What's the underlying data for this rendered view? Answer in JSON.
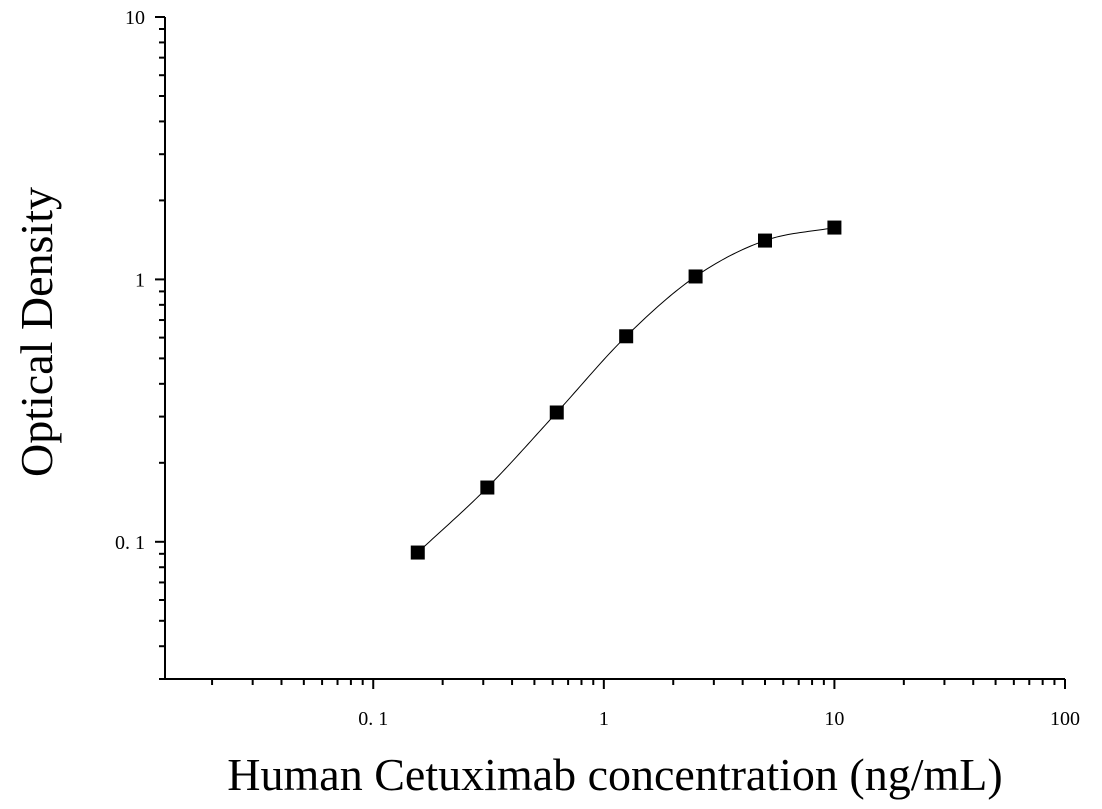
{
  "chart_data": {
    "type": "scatter",
    "x_scale": "log",
    "y_scale": "log",
    "xlabel": "Human Cetuximab concentration (ng/mL)",
    "ylabel": "Optical Density",
    "xlim": [
      0.0125,
      100
    ],
    "ylim": [
      0.03,
      10
    ],
    "x_ticks": [
      {
        "value": 0.1,
        "label": "0. 1"
      },
      {
        "value": 1,
        "label": "1"
      },
      {
        "value": 10,
        "label": "10"
      },
      {
        "value": 100,
        "label": "100"
      }
    ],
    "y_ticks": [
      {
        "value": 0.1,
        "label": "0. 1"
      },
      {
        "value": 1,
        "label": "1"
      },
      {
        "value": 10,
        "label": "10"
      }
    ],
    "grid": false,
    "series": [
      {
        "marker": "square",
        "color": "#000000",
        "x": [
          0.156,
          0.3125,
          0.625,
          1.25,
          2.5,
          5,
          10
        ],
        "y": [
          0.091,
          0.161,
          0.311,
          0.607,
          1.026,
          1.406,
          1.576
        ]
      }
    ],
    "fit_curve": {
      "type": "4PL",
      "color": "#000000"
    }
  }
}
